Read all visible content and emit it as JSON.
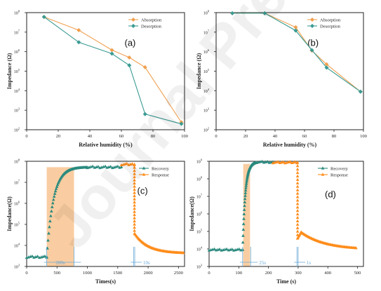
{
  "watermark": "Journal Pre-proof",
  "colors": {
    "absorption": "#f0a050",
    "desorption": "#3a9b93",
    "recovery": "#2a8a7e",
    "response": "#ff8c1a",
    "highlight": "#f7c08a",
    "annot": "#6aa9d8"
  },
  "chart_data": [
    {
      "id": "a",
      "type": "line",
      "panel_label": "(a)",
      "xlabel": "Relative humidity (%)",
      "ylabel": "Impedance (Ω)",
      "xlim": [
        0,
        100
      ],
      "xticks": [
        0,
        20,
        40,
        60,
        80,
        100
      ],
      "yscale": "log",
      "ylim_exp": [
        2,
        8
      ],
      "legend_position": "top-right",
      "series": [
        {
          "name": "Absorption",
          "color_key": "absorption",
          "x": [
            11,
            33,
            54,
            65,
            75,
            98
          ],
          "y_exp": [
            7.78,
            7.1,
            6.08,
            5.7,
            5.2,
            2.38
          ]
        },
        {
          "name": "Desorption",
          "color_key": "desorption",
          "x": [
            11,
            33,
            54,
            65,
            75,
            98
          ],
          "y_exp": [
            7.78,
            6.48,
            5.9,
            5.3,
            2.8,
            2.3
          ]
        }
      ]
    },
    {
      "id": "b",
      "type": "line",
      "panel_label": "(b)",
      "xlabel": "Relative humidity (%)",
      "ylabel": "Impedance (Ω)",
      "xlim": [
        0,
        100
      ],
      "xticks": [
        0,
        20,
        40,
        60,
        80,
        100
      ],
      "yscale": "log",
      "ylim_exp": [
        2,
        8
      ],
      "legend_position": "top-right",
      "series": [
        {
          "name": "Absorption",
          "color_key": "absorption",
          "x": [
            11,
            33,
            54,
            65,
            75,
            98
          ],
          "y_exp": [
            7.97,
            7.97,
            7.25,
            6.05,
            5.35,
            3.95
          ]
        },
        {
          "name": "Desorption",
          "color_key": "desorption",
          "x": [
            11,
            33,
            54,
            65,
            75,
            98
          ],
          "y_exp": [
            7.97,
            7.97,
            7.08,
            6.08,
            5.18,
            3.95
          ]
        }
      ]
    },
    {
      "id": "c",
      "type": "scatter",
      "panel_label": "(c)",
      "xlabel": "Times(s)",
      "ylabel": "Impedance(Ω)",
      "xlim": [
        0,
        2600
      ],
      "xticks": [
        0,
        500,
        1000,
        1500,
        2000,
        2500
      ],
      "yscale": "log",
      "ylim_exp": [
        3,
        8
      ],
      "legend_position": "top-right",
      "highlight": {
        "x_start": 330,
        "x_end": 780
      },
      "annotations": [
        {
          "text": "280s",
          "x_start": 330,
          "x_end": 780
        },
        {
          "text": "10s",
          "x_start": 1760,
          "x_end": 1780
        }
      ],
      "series": [
        {
          "name": "Recovery",
          "color_key": "recovery",
          "segments": [
            {
              "shape": "flat",
              "x0": 0,
              "x1": 330,
              "y_exp": 3.45
            },
            {
              "shape": "rise",
              "x0": 330,
              "x1": 1000,
              "y_lo": 3.45,
              "y_hi": 7.72,
              "tau": 110
            },
            {
              "shape": "flat",
              "x0": 1000,
              "x1": 1560,
              "y_exp": 7.72
            }
          ]
        },
        {
          "name": "Response",
          "color_key": "response",
          "segments": [
            {
              "shape": "flat",
              "x0": 1560,
              "x1": 1770,
              "y_exp": 7.85
            },
            {
              "shape": "drop",
              "x": 1775,
              "y_from": 7.85,
              "y_to": 4.55
            },
            {
              "shape": "decay",
              "x0": 1780,
              "x1": 2580,
              "y_lo": 3.62,
              "y_hi": 4.55,
              "tau": 220
            }
          ]
        }
      ]
    },
    {
      "id": "d",
      "type": "scatter",
      "panel_label": "(d)",
      "xlabel": "Time (s)",
      "ylabel": "Impedance(Ω)",
      "xlim": [
        0,
        520
      ],
      "xticks": [
        0,
        100,
        200,
        300,
        400,
        500
      ],
      "yscale": "log",
      "ylim_exp": [
        3,
        9
      ],
      "legend_position": "top-right",
      "highlight": {
        "x_start": 115,
        "x_end": 138
      },
      "annotations": [
        {
          "text": "25s",
          "x_start": 113,
          "x_end": 140
        },
        {
          "text": "1s",
          "x_start": 296,
          "x_end": 300
        }
      ],
      "series": [
        {
          "name": "Recovery",
          "color_key": "recovery",
          "segments": [
            {
              "shape": "flat",
              "x0": 0,
              "x1": 113,
              "y_exp": 3.95
            },
            {
              "shape": "rise",
              "x0": 113,
              "x1": 160,
              "y_lo": 3.95,
              "y_hi": 8.95,
              "tau": 9
            },
            {
              "shape": "flat",
              "x0": 160,
              "x1": 215,
              "y_exp": 8.95
            }
          ]
        },
        {
          "name": "Response",
          "color_key": "response",
          "segments": [
            {
              "shape": "flat",
              "x0": 215,
              "x1": 296,
              "y_exp": 8.93
            },
            {
              "shape": "drop",
              "x": 298,
              "y_from": 8.93,
              "y_to": 4.6
            },
            {
              "shape": "bump",
              "x0": 298,
              "x1": 310,
              "y_from": 4.6,
              "y_to": 4.95
            },
            {
              "shape": "decay",
              "x0": 310,
              "x1": 495,
              "y_lo": 3.95,
              "y_hi": 4.95,
              "tau": 80
            }
          ]
        }
      ]
    }
  ]
}
